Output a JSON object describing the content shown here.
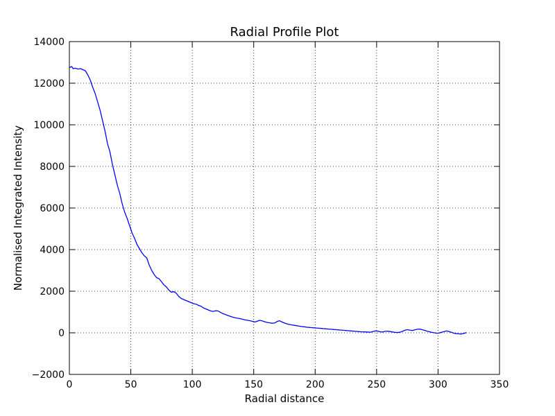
{
  "chart_data": {
    "type": "line",
    "title": "Radial Profile Plot",
    "xlabel": "Radial distance",
    "ylabel": "Normalised Integrated Intensity",
    "xlim": [
      0,
      350
    ],
    "ylim": [
      -2000,
      14000
    ],
    "x_ticks": [
      0,
      50,
      100,
      150,
      200,
      250,
      300,
      350
    ],
    "y_ticks": [
      -2000,
      0,
      2000,
      4000,
      6000,
      8000,
      10000,
      12000,
      14000
    ],
    "x_tick_labels": [
      "0",
      "50",
      "100",
      "150",
      "200",
      "250",
      "300",
      "350"
    ],
    "y_tick_labels": [
      "−2000",
      "0",
      "2000",
      "4000",
      "6000",
      "8000",
      "10000",
      "12000",
      "14000"
    ],
    "grid": true,
    "series": [
      {
        "color": "#0000ff",
        "x": [
          0,
          2,
          3,
          5,
          7,
          9,
          11,
          13,
          15,
          17,
          19,
          21,
          23,
          25,
          27,
          29,
          31,
          33,
          35,
          37,
          39,
          41,
          43,
          45,
          47,
          49,
          51,
          53,
          55,
          57,
          59,
          61,
          63,
          65,
          67,
          69,
          71,
          73,
          75,
          77,
          79,
          81,
          83,
          85,
          87,
          89,
          91,
          93,
          95,
          97,
          99,
          101,
          103,
          105,
          107,
          109,
          111,
          113,
          115,
          117,
          119,
          121,
          123,
          125,
          127,
          129,
          131,
          133,
          135,
          137,
          139,
          141,
          143,
          145,
          147,
          149,
          151,
          153,
          155,
          157,
          159,
          161,
          163,
          165,
          167,
          169,
          171,
          173,
          175,
          177,
          179,
          181,
          183,
          185,
          187,
          189,
          191,
          193,
          195,
          197,
          199,
          201,
          203,
          205,
          207,
          209,
          211,
          213,
          215,
          217,
          219,
          221,
          223,
          225,
          227,
          229,
          231,
          233,
          235,
          237,
          239,
          241,
          243,
          245,
          247,
          249,
          251,
          253,
          255,
          257,
          259,
          261,
          263,
          265,
          267,
          269,
          271,
          273,
          275,
          277,
          279,
          281,
          283,
          285,
          287,
          289,
          291,
          293,
          295,
          297,
          299,
          301,
          303,
          305,
          307,
          309,
          311,
          313,
          315,
          317,
          319,
          321,
          323
        ],
        "y": [
          12750,
          12800,
          12700,
          12720,
          12680,
          12700,
          12650,
          12600,
          12400,
          12150,
          11800,
          11500,
          11100,
          10700,
          10200,
          9700,
          9100,
          8700,
          8100,
          7600,
          7100,
          6700,
          6200,
          5800,
          5500,
          5150,
          4800,
          4550,
          4250,
          4050,
          3850,
          3700,
          3600,
          3250,
          3000,
          2800,
          2650,
          2600,
          2450,
          2300,
          2200,
          2050,
          1950,
          1980,
          1900,
          1750,
          1650,
          1600,
          1550,
          1500,
          1450,
          1400,
          1380,
          1320,
          1280,
          1200,
          1150,
          1100,
          1050,
          1030,
          1060,
          1050,
          980,
          920,
          880,
          830,
          790,
          750,
          720,
          700,
          680,
          650,
          620,
          600,
          580,
          550,
          520,
          560,
          600,
          570,
          530,
          500,
          480,
          460,
          470,
          540,
          580,
          520,
          470,
          430,
          400,
          380,
          360,
          340,
          320,
          300,
          290,
          270,
          260,
          250,
          240,
          230,
          220,
          210,
          200,
          190,
          180,
          170,
          160,
          150,
          140,
          130,
          120,
          110,
          100,
          90,
          80,
          70,
          60,
          50,
          45,
          40,
          35,
          30,
          60,
          90,
          80,
          50,
          40,
          70,
          80,
          60,
          40,
          20,
          10,
          30,
          70,
          120,
          150,
          130,
          110,
          140,
          170,
          180,
          150,
          120,
          80,
          50,
          20,
          0,
          -20,
          -10,
          30,
          60,
          90,
          60,
          20,
          -20,
          -40,
          -50,
          -60,
          -30,
          10
        ]
      }
    ]
  }
}
